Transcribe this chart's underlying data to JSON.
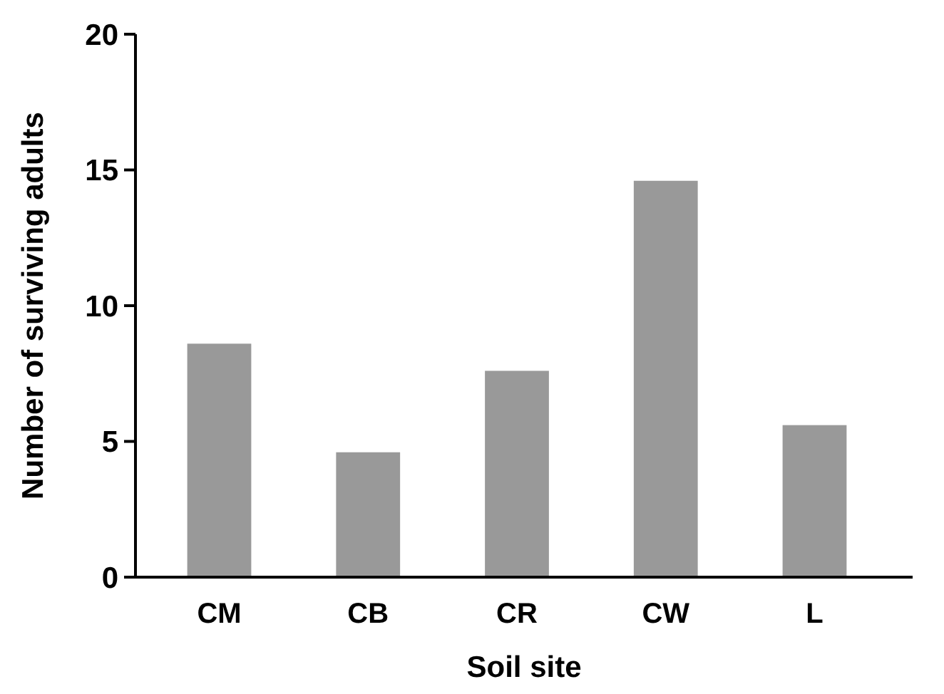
{
  "chart_data": {
    "type": "bar",
    "xlabel": "Soil site",
    "ylabel": "Number of surviving adults",
    "categories": [
      "CM",
      "CB",
      "CR",
      "CW",
      "L"
    ],
    "values": [
      8.6,
      4.6,
      7.6,
      14.6,
      5.6
    ],
    "color": "#999999",
    "ylim": [
      0,
      20
    ],
    "yticks": [
      0,
      5,
      10,
      15,
      20
    ],
    "grid": false
  }
}
